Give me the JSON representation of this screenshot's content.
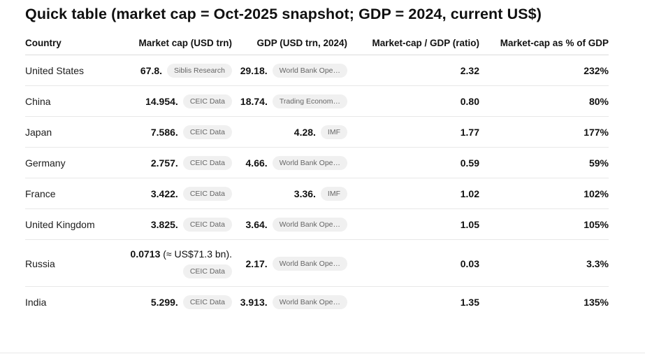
{
  "title": "Quick table (market cap = Oct-2025 snapshot; GDP = 2024, current US$)",
  "colors": {
    "badge_background": "#f0f0f0",
    "badge_text": "#656565",
    "row_border": "#e8e8e8"
  },
  "table": {
    "columns": {
      "country": "Country",
      "market_cap": "Market cap (USD trn)",
      "gdp": "GDP (USD trn, 2024)",
      "ratio": "Market-cap / GDP (ratio)",
      "pct": "Market-cap as % of GDP"
    },
    "rows": [
      {
        "country": "United States",
        "mc_bold": "67.8.",
        "mc_rest": "",
        "mc_source": "Siblis Research",
        "gdp_value": "29.18.",
        "gdp_source": "World Bank Ope…",
        "ratio": "2.32",
        "pct": "232%"
      },
      {
        "country": "China",
        "mc_bold": "14.954.",
        "mc_rest": "",
        "mc_source": "CEIC Data",
        "gdp_value": "18.74.",
        "gdp_source": "Trading Econom…",
        "ratio": "0.80",
        "pct": "80%"
      },
      {
        "country": "Japan",
        "mc_bold": "7.586.",
        "mc_rest": "",
        "mc_source": "CEIC Data",
        "gdp_value": "4.28.",
        "gdp_source": "IMF",
        "ratio": "1.77",
        "pct": "177%"
      },
      {
        "country": "Germany",
        "mc_bold": "2.757.",
        "mc_rest": "",
        "mc_source": "CEIC Data",
        "gdp_value": "4.66.",
        "gdp_source": "World Bank Ope…",
        "ratio": "0.59",
        "pct": "59%"
      },
      {
        "country": "France",
        "mc_bold": "3.422.",
        "mc_rest": "",
        "mc_source": "CEIC Data",
        "gdp_value": "3.36.",
        "gdp_source": "IMF",
        "ratio": "1.02",
        "pct": "102%"
      },
      {
        "country": "United Kingdom",
        "mc_bold": "3.825.",
        "mc_rest": "",
        "mc_source": "CEIC Data",
        "gdp_value": "3.64.",
        "gdp_source": "World Bank Ope…",
        "ratio": "1.05",
        "pct": "105%"
      },
      {
        "country": "Russia",
        "mc_bold": "0.0713",
        "mc_rest": " (≈ US$71.3 bn).",
        "mc_source": "CEIC Data",
        "gdp_value": "2.17.",
        "gdp_source": "World Bank Ope…",
        "ratio": "0.03",
        "pct": "3.3%"
      },
      {
        "country": "India",
        "mc_bold": "5.299.",
        "mc_rest": "",
        "mc_source": "CEIC Data",
        "gdp_value": "3.913.",
        "gdp_source": "World Bank Ope…",
        "ratio": "1.35",
        "pct": "135%"
      }
    ]
  }
}
